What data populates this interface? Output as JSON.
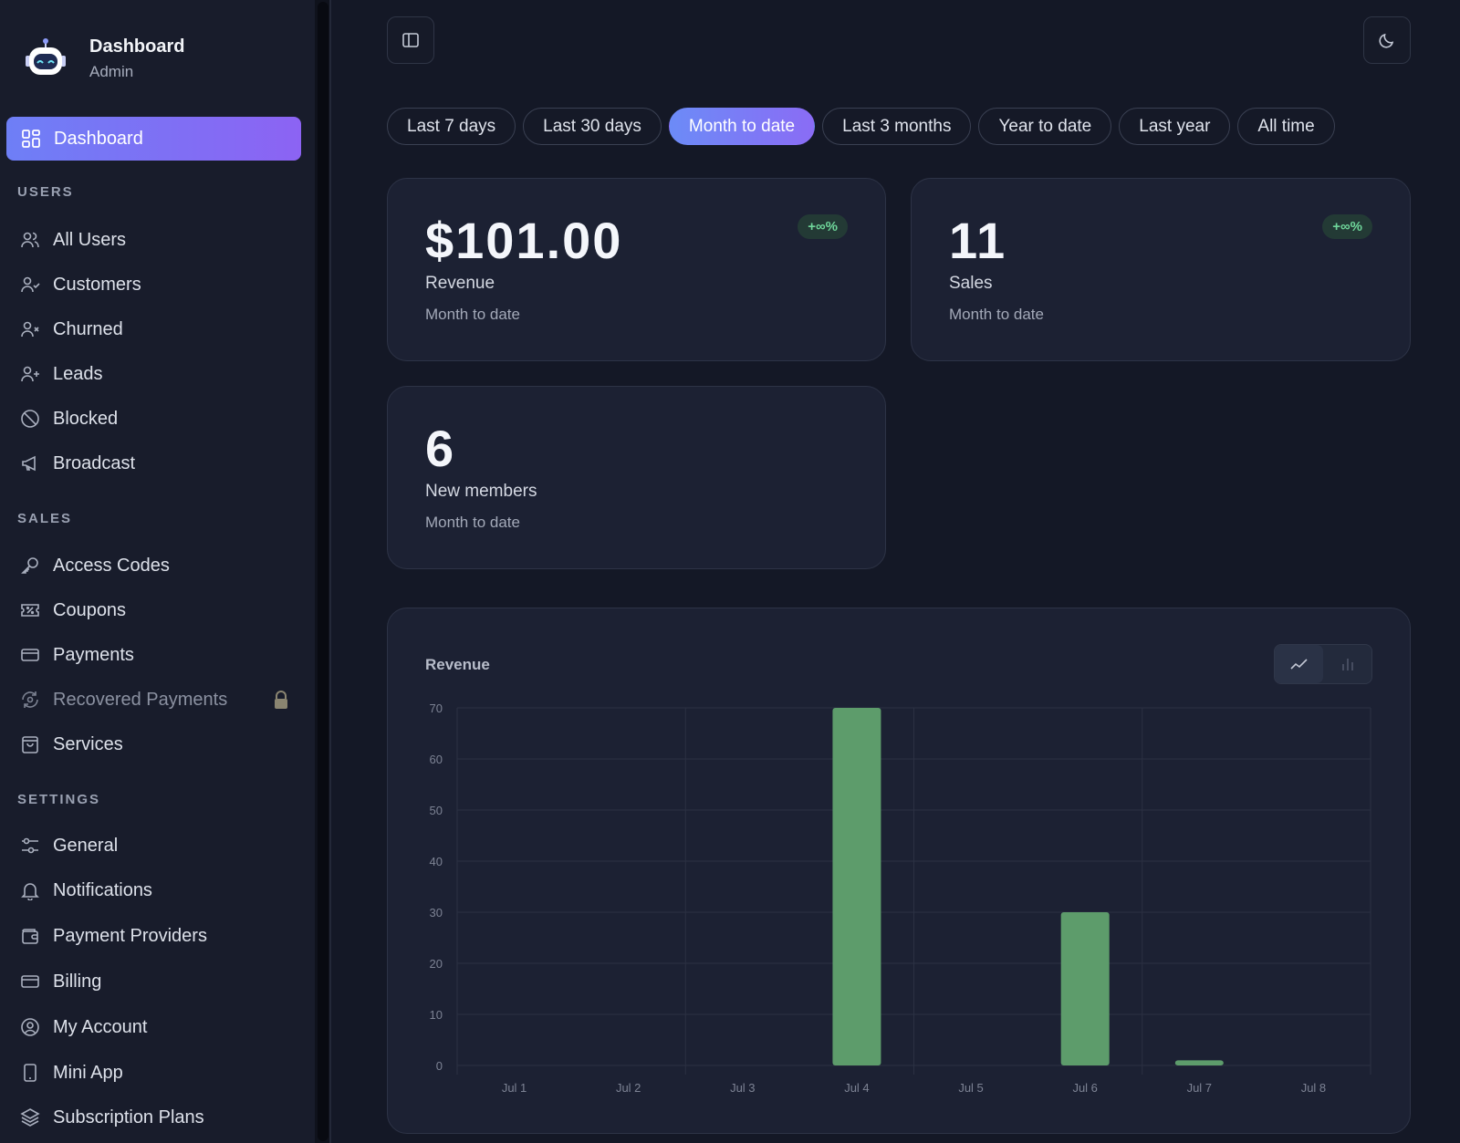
{
  "brand": {
    "title": "Dashboard",
    "subtitle": "Admin"
  },
  "nav": {
    "active": {
      "label": "Dashboard",
      "icon": "grid-icon"
    },
    "sections": [
      {
        "title": "USERS",
        "items": [
          {
            "label": "All Users",
            "icon": "users-icon"
          },
          {
            "label": "Customers",
            "icon": "user-check-icon"
          },
          {
            "label": "Churned",
            "icon": "user-x-icon"
          },
          {
            "label": "Leads",
            "icon": "user-plus-icon"
          },
          {
            "label": "Blocked",
            "icon": "ban-icon"
          },
          {
            "label": "Broadcast",
            "icon": "megaphone-icon"
          }
        ]
      },
      {
        "title": "SALES",
        "items": [
          {
            "label": "Access Codes",
            "icon": "key-icon"
          },
          {
            "label": "Coupons",
            "icon": "ticket-icon"
          },
          {
            "label": "Payments",
            "icon": "credit-card-icon"
          },
          {
            "label": "Recovered Payments",
            "icon": "refresh-icon",
            "locked": true
          },
          {
            "label": "Services",
            "icon": "shopping-bag-icon"
          }
        ]
      },
      {
        "title": "SETTINGS",
        "items": [
          {
            "label": "General",
            "icon": "sliders-icon"
          },
          {
            "label": "Notifications",
            "icon": "bell-icon"
          },
          {
            "label": "Payment Providers",
            "icon": "wallet-icon"
          },
          {
            "label": "Billing",
            "icon": "credit-card-icon"
          },
          {
            "label": "My Account",
            "icon": "user-circle-icon"
          },
          {
            "label": "Mini App",
            "icon": "phone-icon"
          },
          {
            "label": "Subscription Plans",
            "icon": "layers-icon"
          }
        ]
      }
    ]
  },
  "filters": {
    "options": [
      "Last 7 days",
      "Last 30 days",
      "Month to date",
      "Last 3 months",
      "Year to date",
      "Last year",
      "All time"
    ],
    "selected": "Month to date"
  },
  "stats": {
    "revenue": {
      "value": "$101.00",
      "label": "Revenue",
      "period": "Month to date",
      "badge": "+∞%"
    },
    "sales": {
      "value": "11",
      "label": "Sales",
      "period": "Month to date",
      "badge": "+∞%"
    },
    "members": {
      "value": "6",
      "label": "New members",
      "period": "Month to date"
    }
  },
  "chart": {
    "title": "Revenue",
    "view_options": [
      "line-chart-icon",
      "bar-chart-icon"
    ],
    "selected_view": "bar-chart-icon"
  },
  "chart_data": {
    "type": "bar",
    "title": "Revenue",
    "categories": [
      "Jul 1",
      "Jul 2",
      "Jul 3",
      "Jul 4",
      "Jul 5",
      "Jul 6",
      "Jul 7",
      "Jul 8"
    ],
    "values": [
      0,
      0,
      0,
      70,
      0,
      30,
      1,
      0
    ],
    "yticks": [
      0,
      10,
      20,
      30,
      40,
      50,
      60,
      70
    ],
    "ylim": [
      0,
      70
    ],
    "grid": true,
    "bar_color": "#5d9c6b"
  },
  "colors": {
    "accent_start": "#6e7ff6",
    "accent_end": "#8c63f3",
    "positive": "#6fd69a",
    "background": "#141826",
    "card": "#1c2133"
  }
}
